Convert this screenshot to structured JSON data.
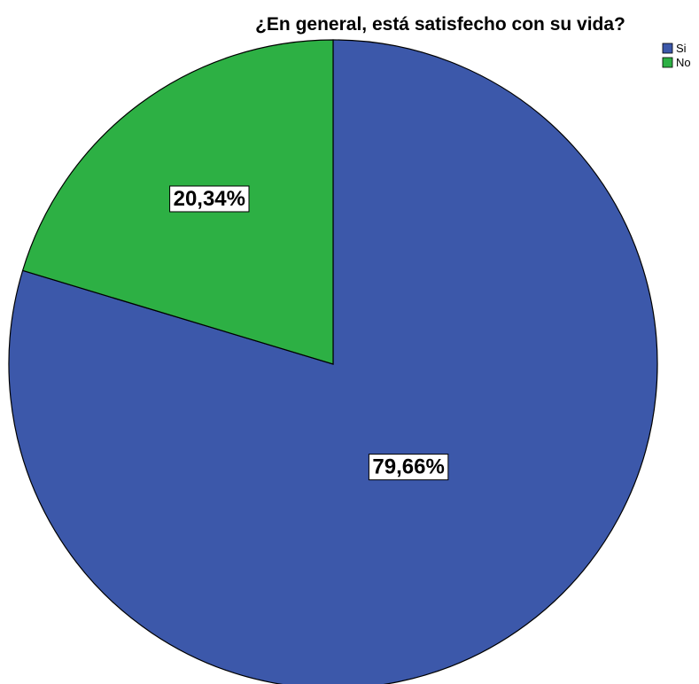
{
  "chart_data": {
    "type": "pie",
    "title": "¿En general, está satisfecho con su vida?",
    "slices": [
      {
        "name": "Si",
        "value": 79.66,
        "label": "79,66%",
        "color": "#3C58AA"
      },
      {
        "name": "No",
        "value": 20.34,
        "label": "20,34%",
        "color": "#2DB044"
      }
    ],
    "start": "12 o'clock",
    "direction": "clockwise",
    "legend": "top-right"
  }
}
